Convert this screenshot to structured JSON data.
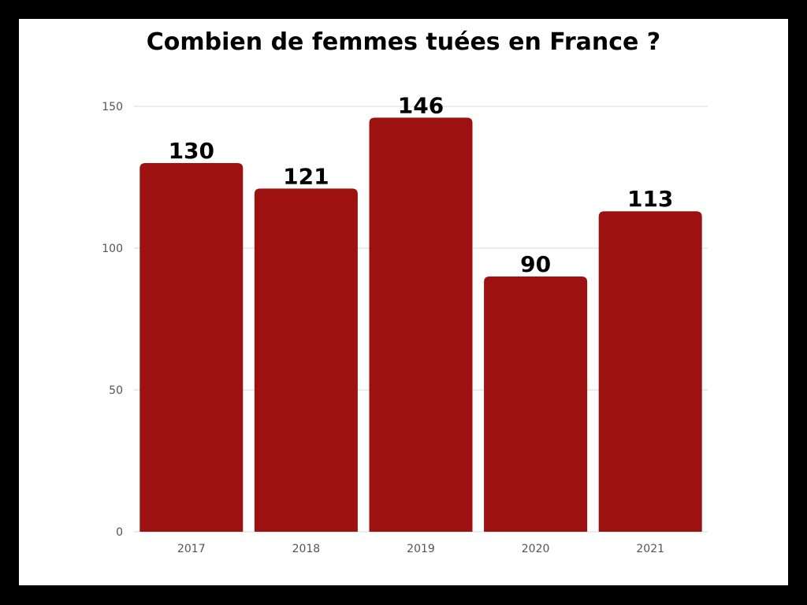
{
  "colors": {
    "frame": "#000000",
    "background": "#ffffff",
    "bar": "#9e1111",
    "grid": "#d9d9d9",
    "axis_text": "#555555"
  },
  "chart_data": {
    "type": "bar",
    "title": "Combien de femmes tuées en France ?",
    "xlabel": "",
    "ylabel": "",
    "categories": [
      "2017",
      "2018",
      "2019",
      "2020",
      "2021"
    ],
    "values": [
      130,
      121,
      146,
      90,
      113
    ],
    "data_labels": [
      "130",
      "121",
      "146",
      "90",
      "113"
    ],
    "ylim": [
      0,
      150
    ],
    "yticks": [
      0,
      50,
      100,
      150
    ],
    "ytick_labels": [
      "0",
      "50",
      "100",
      "150"
    ],
    "grid": true,
    "legend": "none"
  }
}
